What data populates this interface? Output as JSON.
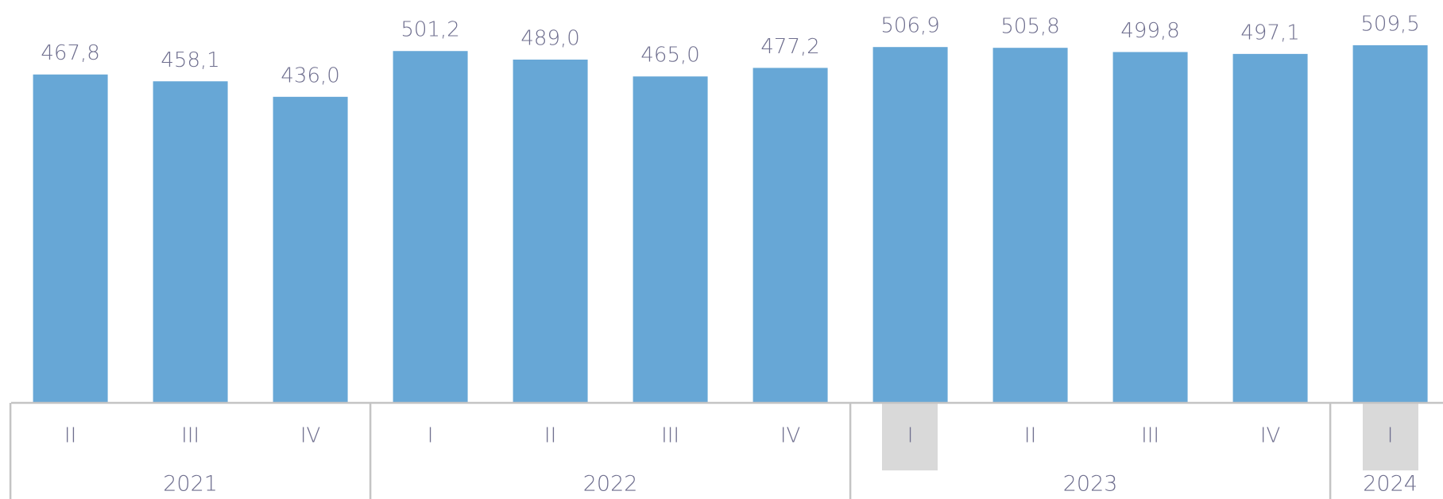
{
  "chart_data": {
    "type": "bar",
    "color": "#67a7d6",
    "groups": [
      {
        "label": "2021",
        "categories": [
          "II",
          "III",
          "IV"
        ]
      },
      {
        "label": "2022",
        "categories": [
          "I",
          "II",
          "III",
          "IV"
        ]
      },
      {
        "label": "2023",
        "categories": [
          "I",
          "II",
          "III",
          "IV"
        ]
      },
      {
        "label": "2024",
        "categories": [
          "I"
        ]
      }
    ],
    "values": [
      467.8,
      458.1,
      436.0,
      501.2,
      489.0,
      465.0,
      477.2,
      506.9,
      505.8,
      499.8,
      497.1,
      509.5
    ],
    "value_labels": [
      "467,8",
      "458,1",
      "436,0",
      "501,2",
      "489,0",
      "465,0",
      "477,2",
      "506,9",
      "505,8",
      "499,8",
      "497,1",
      "509,5"
    ]
  }
}
